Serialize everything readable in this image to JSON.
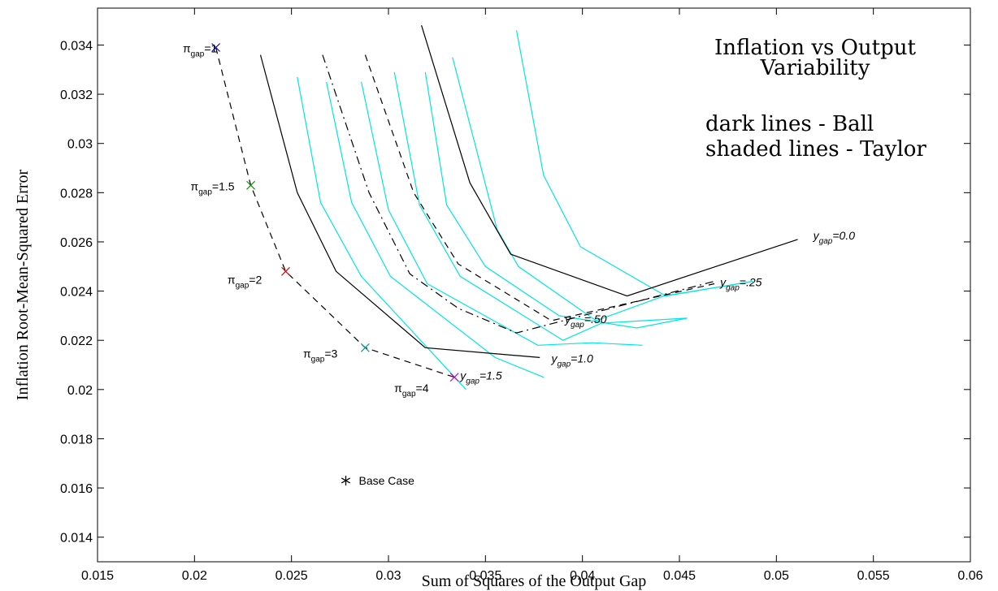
{
  "chart_data": {
    "type": "line",
    "xlabel": "Sum of Squares of the Output Gap",
    "ylabel": "Inflation Root-Mean-Squared Error",
    "xlim": [
      0.015,
      0.06
    ],
    "ylim": [
      0.013,
      0.0355
    ],
    "xticks": [
      "0.015",
      "0.02",
      "0.025",
      "0.03",
      "0.035",
      "0.04",
      "0.045",
      "0.05",
      "0.055",
      "0.06"
    ],
    "yticks": [
      "0.014",
      "0.016",
      "0.018",
      "0.02",
      "0.022",
      "0.024",
      "0.026",
      "0.028",
      "0.03",
      "0.032",
      "0.034"
    ],
    "grid": false,
    "colors": {
      "ball": "#000000",
      "taylor": "#00e5e5",
      "axis": "#000000"
    },
    "annotations": {
      "title_line1": "Inflation vs Output",
      "title_line2": "Variability",
      "legend_line1": "dark lines - Ball",
      "legend_line2": "shaded lines - Taylor"
    },
    "ball_series": [
      {
        "style": "solid",
        "x": [
          0.0234,
          0.0253,
          0.0273,
          0.0319,
          0.0378
        ],
        "y": [
          0.0336,
          0.028,
          0.0248,
          0.0217,
          0.0213
        ]
      },
      {
        "style": "dashdot",
        "x": [
          0.0266,
          0.029,
          0.0311,
          0.0336,
          0.0366,
          0.0468
        ],
        "y": [
          0.0336,
          0.028,
          0.0247,
          0.0233,
          0.0223,
          0.0244
        ]
      },
      {
        "style": "dashed",
        "x": [
          0.0288,
          0.0313,
          0.0336,
          0.0384,
          0.0468
        ],
        "y": [
          0.0336,
          0.028,
          0.0251,
          0.0228,
          0.0243
        ]
      },
      {
        "style": "solid",
        "x": [
          0.0317,
          0.0342,
          0.0363,
          0.0423,
          0.0511
        ],
        "y": [
          0.0348,
          0.0284,
          0.0255,
          0.0238,
          0.0261
        ]
      }
    ],
    "taylor_series": [
      {
        "x": [
          0.0253,
          0.0265,
          0.0286,
          0.034
        ],
        "y": [
          0.0327,
          0.0276,
          0.0246,
          0.02
        ]
      },
      {
        "x": [
          0.0268,
          0.0281,
          0.0301,
          0.0355,
          0.038
        ],
        "y": [
          0.0325,
          0.0276,
          0.0246,
          0.0213,
          0.0205
        ]
      },
      {
        "x": [
          0.0286,
          0.03,
          0.032,
          0.0377,
          0.0405,
          0.0431
        ],
        "y": [
          0.0325,
          0.0273,
          0.0243,
          0.0218,
          0.0219,
          0.0218
        ]
      },
      {
        "x": [
          0.0303,
          0.0316,
          0.0337,
          0.039,
          0.041,
          0.0454
        ],
        "y": [
          0.0329,
          0.0275,
          0.0246,
          0.022,
          0.0227,
          0.0229
        ]
      },
      {
        "x": [
          0.0319,
          0.033,
          0.035,
          0.0388,
          0.0428,
          0.0454
        ],
        "y": [
          0.0329,
          0.0275,
          0.025,
          0.023,
          0.0225,
          0.0229
        ]
      },
      {
        "x": [
          0.0333,
          0.0356,
          0.0367,
          0.0407,
          0.0442,
          0.0488
        ],
        "y": [
          0.0335,
          0.0265,
          0.025,
          0.0228,
          0.0238,
          0.0244
        ]
      },
      {
        "x": [
          0.0366,
          0.038,
          0.0399,
          0.0443,
          0.0488
        ],
        "y": [
          0.0346,
          0.0287,
          0.0258,
          0.0238,
          0.0244
        ]
      }
    ],
    "policy_frontier": {
      "style": "dashed",
      "x": [
        0.0211,
        0.0229,
        0.0247,
        0.0288,
        0.0334
      ],
      "y": [
        0.0339,
        0.0283,
        0.0248,
        0.0217,
        0.0205
      ]
    },
    "markers": [
      {
        "x": 0.0211,
        "y": 0.0339,
        "color": "#0000cc"
      },
      {
        "x": 0.0229,
        "y": 0.0283,
        "color": "#008800"
      },
      {
        "x": 0.0247,
        "y": 0.0248,
        "color": "#dd0000"
      },
      {
        "x": 0.0288,
        "y": 0.0217,
        "color": "#009999"
      },
      {
        "x": 0.0334,
        "y": 0.0205,
        "color": "#cc00cc"
      }
    ],
    "base_case": {
      "x": 0.0278,
      "y": 0.0163,
      "label": "Base Case"
    },
    "pi_labels": [
      {
        "base": "π",
        "sub": "gap",
        "rest": "=1",
        "x": 0.0194,
        "y": 0.0337
      },
      {
        "base": "π",
        "sub": "gap",
        "rest": "=1.5",
        "x": 0.0198,
        "y": 0.0281
      },
      {
        "base": "π",
        "sub": "gap",
        "rest": "=2",
        "x": 0.0217,
        "y": 0.0243
      },
      {
        "base": "π",
        "sub": "gap",
        "rest": "=3",
        "x": 0.0256,
        "y": 0.0213
      },
      {
        "base": "π",
        "sub": "gap",
        "rest": "=4",
        "x": 0.0303,
        "y": 0.0199
      }
    ],
    "y_labels": [
      {
        "base": "y",
        "sub": "gap",
        "rest": "=0.0",
        "x": 0.0519,
        "y": 0.0261
      },
      {
        "base": "y",
        "sub": "gap",
        "rest": "=.25",
        "x": 0.0471,
        "y": 0.0242
      },
      {
        "base": "y",
        "sub": "gap",
        "rest": "=.50",
        "x": 0.0391,
        "y": 0.0227
      },
      {
        "base": "y",
        "sub": "gap",
        "rest": "=1.0",
        "x": 0.0384,
        "y": 0.0211
      },
      {
        "base": "y",
        "sub": "gap",
        "rest": "=1.5",
        "x": 0.0337,
        "y": 0.0204
      }
    ]
  }
}
